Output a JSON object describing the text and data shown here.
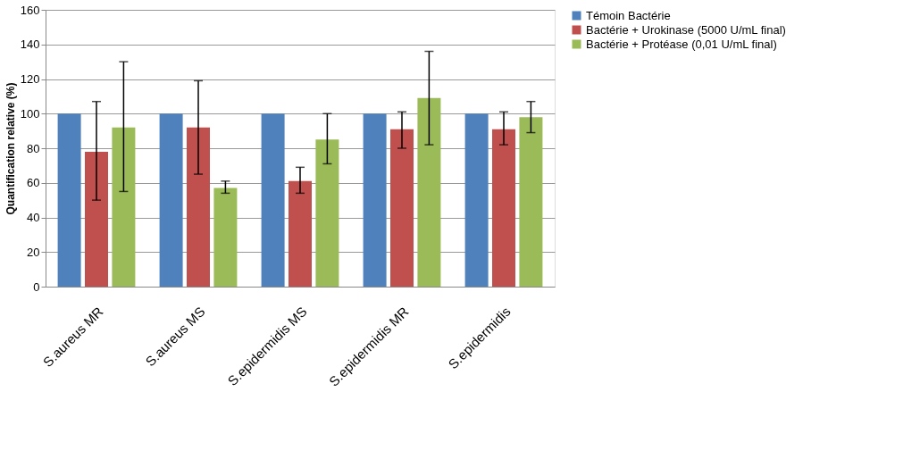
{
  "chart_data": {
    "type": "bar",
    "ylabel": "Quantification relative (%)",
    "categories": [
      "S.aureus MR",
      "S.aureus MS",
      "S.epidermidis MS",
      "S.epidermidis MR",
      "S.epidermidis"
    ],
    "series": [
      {
        "name": "Témoin Bactérie",
        "color": "#4f81bd",
        "values": [
          100,
          100,
          100,
          100,
          100
        ]
      },
      {
        "name": "Bactérie + Urokinase (5000 U/mL final)",
        "color": "#c0504d",
        "values": [
          78,
          92,
          61,
          91,
          91
        ],
        "errors": [
          [
            50,
            107
          ],
          [
            65,
            119
          ],
          [
            54,
            69
          ],
          [
            80,
            101
          ],
          [
            82,
            101
          ]
        ]
      },
      {
        "name": "Bactérie + Protéase (0,01 U/mL final)",
        "color": "#9bbb59",
        "values": [
          92,
          57,
          85,
          109,
          98
        ],
        "errors": [
          [
            55,
            130
          ],
          [
            54,
            61
          ],
          [
            71,
            100
          ],
          [
            82,
            136
          ],
          [
            89,
            107
          ]
        ]
      }
    ],
    "ylim": [
      0,
      160
    ],
    "yticks": [
      0,
      20,
      40,
      60,
      80,
      100,
      120,
      140,
      160
    ],
    "grid": "y",
    "legend": "right"
  }
}
